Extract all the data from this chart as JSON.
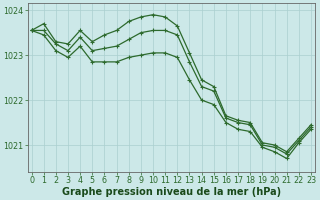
{
  "series": [
    {
      "x": [
        0,
        1,
        2,
        3,
        4,
        5,
        6,
        7,
        8,
        9,
        10,
        11,
        12,
        13,
        14,
        15,
        16,
        17,
        18,
        19,
        20,
        21,
        22,
        23
      ],
      "y": [
        1023.55,
        1023.7,
        1023.3,
        1023.25,
        1023.55,
        1023.3,
        1023.45,
        1023.55,
        1023.75,
        1023.85,
        1023.9,
        1023.85,
        1023.65,
        1023.05,
        1022.45,
        1022.3,
        1021.65,
        1021.55,
        1021.5,
        1021.05,
        1021.0,
        1020.85,
        1021.15,
        1021.45
      ]
    },
    {
      "x": [
        0,
        1,
        2,
        3,
        4,
        5,
        6,
        7,
        8,
        9,
        10,
        11,
        12,
        13,
        14,
        15,
        16,
        17,
        18,
        19,
        20,
        21,
        22,
        23
      ],
      "y": [
        1023.55,
        1023.55,
        1023.25,
        1023.1,
        1023.4,
        1023.1,
        1023.15,
        1023.2,
        1023.35,
        1023.5,
        1023.55,
        1023.55,
        1023.45,
        1022.85,
        1022.3,
        1022.2,
        1021.6,
        1021.5,
        1021.45,
        1021.0,
        1020.95,
        1020.8,
        1021.1,
        1021.4
      ]
    },
    {
      "x": [
        0,
        1,
        2,
        3,
        4,
        5,
        6,
        7,
        8,
        9,
        10,
        11,
        12,
        13,
        14,
        15,
        16,
        17,
        18,
        19,
        20,
        21,
        22,
        23
      ],
      "y": [
        1023.55,
        1023.45,
        1023.1,
        1022.95,
        1023.2,
        1022.85,
        1022.85,
        1022.85,
        1022.95,
        1023.0,
        1023.05,
        1023.05,
        1022.95,
        1022.45,
        1022.0,
        1021.9,
        1021.5,
        1021.35,
        1021.3,
        1020.95,
        1020.85,
        1020.7,
        1021.05,
        1021.35
      ]
    }
  ],
  "line_color": "#2d6a2d",
  "marker": "+",
  "marker_size": 3,
  "marker_lw": 0.8,
  "line_width": 0.9,
  "bg_color": "#cce8e8",
  "grid_color": "#aacfcf",
  "grid_lw": 0.5,
  "ylabel_ticks": [
    1021,
    1022,
    1023,
    1024
  ],
  "xticks": [
    0,
    1,
    2,
    3,
    4,
    5,
    6,
    7,
    8,
    9,
    10,
    11,
    12,
    13,
    14,
    15,
    16,
    17,
    18,
    19,
    20,
    21,
    22,
    23
  ],
  "ylim": [
    1020.4,
    1024.15
  ],
  "xlim": [
    -0.3,
    23.3
  ],
  "xlabel": "Graphe pression niveau de la mer (hPa)",
  "xlabel_fontsize": 7,
  "tick_fontsize": 5.8,
  "axis_color": "#2d6a2d",
  "label_color": "#1a4a1a",
  "spine_color": "#666666",
  "figsize": [
    3.2,
    2.0
  ],
  "dpi": 100
}
